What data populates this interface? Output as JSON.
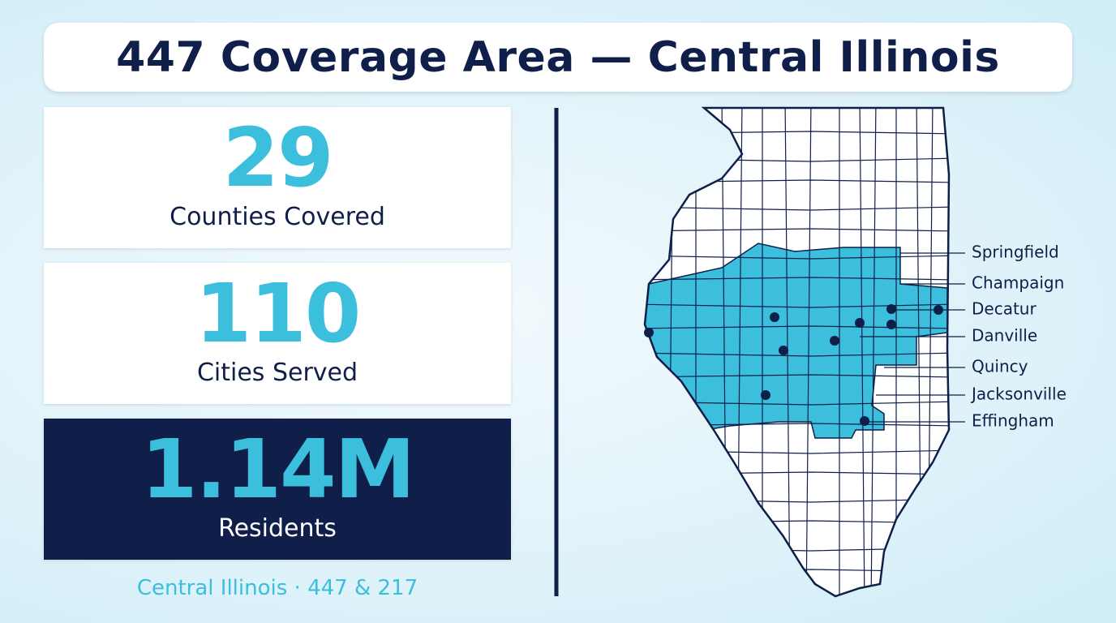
{
  "header": {
    "title": "447 Coverage Area — Central Illinois"
  },
  "stats": [
    {
      "value": "29",
      "label": "Counties Covered"
    },
    {
      "value": "110",
      "label": "Cities Served"
    },
    {
      "value": "1.14M",
      "label": "Residents"
    }
  ],
  "footer": "Central Illinois · 447 & 217",
  "map": {
    "labels": [
      "Springfield",
      "Champaign",
      "Decatur",
      "Danville",
      "Quincy",
      "Jacksonville",
      "Effingham"
    ]
  }
}
